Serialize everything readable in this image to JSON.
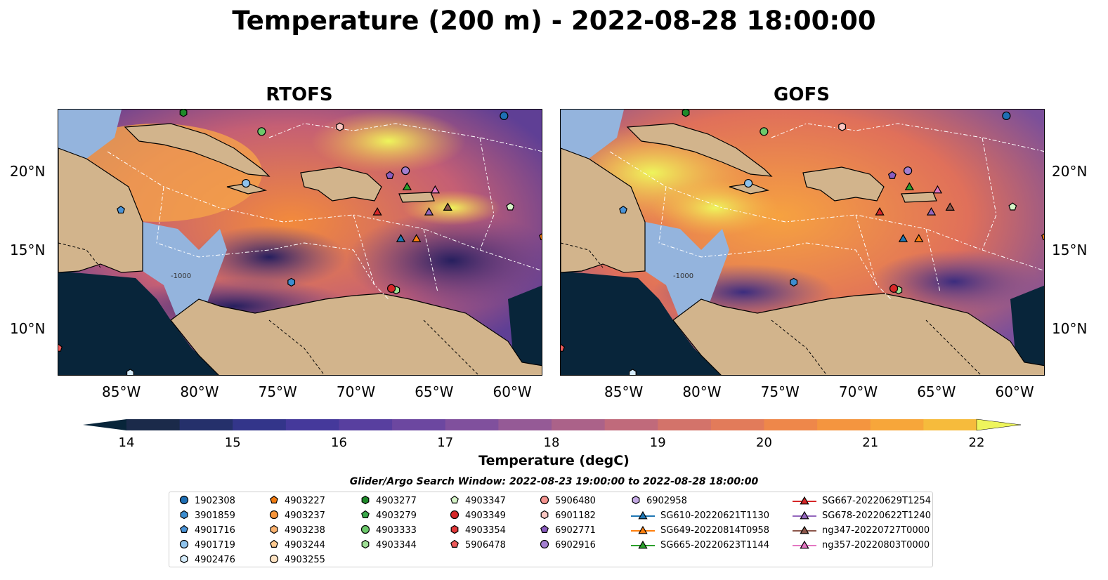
{
  "title": "Temperature (200 m) - 2022-08-28 18:00:00",
  "panels": [
    {
      "title": "RTOFS"
    },
    {
      "title": "GOFS"
    }
  ],
  "map_axes": {
    "lon_labels": [
      "85°W",
      "80°W",
      "75°W",
      "70°W",
      "65°W",
      "60°W"
    ],
    "lat_labels": [
      "20°N",
      "15°N",
      "10°N"
    ],
    "contour_label": "-1000"
  },
  "colors": {
    "land": "#d2b48c",
    "shelf": "#94b4dd",
    "deep": "#08253a",
    "cold": "#2d2a72",
    "mid": "#7a4f9e",
    "warm": "#f0873c",
    "hot": "#f7b84a",
    "hottest": "#e8f55a"
  },
  "colorbar": {
    "ticks": [
      "14",
      "15",
      "16",
      "17",
      "18",
      "19",
      "20",
      "21",
      "22"
    ],
    "min": 14,
    "max": 22,
    "label": "Temperature (degC)"
  },
  "legend": {
    "title": "Glider/Argo Search Window: 2022-08-23 19:00:00 to 2022-08-28 18:00:00",
    "columns": [
      [
        {
          "label": "1902308",
          "marker": "circle",
          "color": "#1f6fb4"
        },
        {
          "label": "3901859",
          "marker": "hexagon",
          "color": "#3d8ed0"
        },
        {
          "label": "4901716",
          "marker": "pentagon",
          "color": "#4a93d6"
        },
        {
          "label": "4901719",
          "marker": "circle",
          "color": "#8fc3ec"
        },
        {
          "label": "4902476",
          "marker": "hexagon",
          "color": "#d4ebfb"
        }
      ],
      [
        {
          "label": "4903227",
          "marker": "pentagon",
          "color": "#f07a10"
        },
        {
          "label": "4903237",
          "marker": "circle",
          "color": "#f7953a"
        },
        {
          "label": "4903238",
          "marker": "hexagon",
          "color": "#fbb26e"
        },
        {
          "label": "4903244",
          "marker": "pentagon",
          "color": "#fdc98f"
        },
        {
          "label": "4903255",
          "marker": "circle",
          "color": "#fde3c3"
        }
      ],
      [
        {
          "label": "4903277",
          "marker": "hexagon",
          "color": "#1f8a2a"
        },
        {
          "label": "4903279",
          "marker": "pentagon",
          "color": "#3aa84a"
        },
        {
          "label": "4903333",
          "marker": "circle",
          "color": "#6cc96b"
        },
        {
          "label": "4903344",
          "marker": "hexagon",
          "color": "#9fdf95"
        }
      ],
      [
        {
          "label": "4903347",
          "marker": "pentagon",
          "color": "#d6f5c8"
        },
        {
          "label": "4903349",
          "marker": "circle",
          "color": "#d62728"
        },
        {
          "label": "4903354",
          "marker": "hexagon",
          "color": "#e2393a"
        },
        {
          "label": "5906478",
          "marker": "pentagon",
          "color": "#ec5a5a"
        }
      ],
      [
        {
          "label": "5906480",
          "marker": "circle",
          "color": "#f4938f"
        },
        {
          "label": "6901182",
          "marker": "hexagon",
          "color": "#fbc7c2"
        },
        {
          "label": "6902771",
          "marker": "pentagon",
          "color": "#8a5cbf"
        },
        {
          "label": "6902916",
          "marker": "circle",
          "color": "#a37fd0"
        }
      ],
      [
        {
          "label": "6902958",
          "marker": "hexagon",
          "color": "#c3a8e3"
        },
        {
          "label": "SG610-20220621T1130",
          "marker": "triangle",
          "color": "#1f77b4"
        },
        {
          "label": "SG649-20220814T0958",
          "marker": "triangle",
          "color": "#ff7f0e"
        },
        {
          "label": "SG665-20220623T1144",
          "marker": "triangle",
          "color": "#2ca02c"
        }
      ],
      [
        {
          "label": "SG667-20220629T1254",
          "marker": "triangle",
          "color": "#d62728"
        },
        {
          "label": "SG678-20220622T1240",
          "marker": "triangle",
          "color": "#9467bd"
        },
        {
          "label": "ng347-20220727T0000",
          "marker": "triangle",
          "color": "#8c564b"
        },
        {
          "label": "ng357-20220803T0000",
          "marker": "triangle",
          "color": "#e377c2"
        }
      ]
    ]
  },
  "observations": [
    {
      "label": "1902308",
      "lon": -60.5,
      "lat": 23.6
    },
    {
      "label": "3901859",
      "lon": -74.1,
      "lat": 13.0
    },
    {
      "label": "4901716",
      "lon": -85.0,
      "lat": 17.6
    },
    {
      "label": "4901719",
      "lon": -77.0,
      "lat": 19.3
    },
    {
      "label": "4902476",
      "lon": -84.4,
      "lat": 7.2
    },
    {
      "label": "4903333",
      "lon": -76.0,
      "lat": 22.6
    },
    {
      "label": "4903344",
      "lon": -67.4,
      "lat": 12.5
    },
    {
      "label": "4903347",
      "lon": -60.1,
      "lat": 17.8
    },
    {
      "label": "4903349",
      "lon": -67.7,
      "lat": 12.6
    },
    {
      "label": "5906478",
      "lon": -89.0,
      "lat": 8.8
    },
    {
      "label": "6901182",
      "lon": -71.0,
      "lat": 22.9
    },
    {
      "label": "6902771",
      "lon": -67.8,
      "lat": 19.8
    },
    {
      "label": "6902916",
      "lon": -66.8,
      "lat": 20.1
    },
    {
      "label": "4903277",
      "lon": -81.0,
      "lat": 23.8
    },
    {
      "label": "4903227",
      "lon": -58.0,
      "lat": 15.9
    },
    {
      "label": "SG610-20220621T1130",
      "lon": -67.1,
      "lat": 15.8
    },
    {
      "label": "SG649-20220814T0958",
      "lon": -66.1,
      "lat": 15.8
    },
    {
      "label": "SG665-20220623T1144",
      "lon": -66.7,
      "lat": 19.1
    },
    {
      "label": "SG667-20220629T1254",
      "lon": -68.6,
      "lat": 17.5
    },
    {
      "label": "SG678-20220622T1240",
      "lon": -65.3,
      "lat": 17.5
    },
    {
      "label": "ng347-20220727T0000",
      "lon": -64.1,
      "lat": 17.8
    },
    {
      "label": "ng357-20220803T0000",
      "lon": -64.9,
      "lat": 18.9
    }
  ]
}
